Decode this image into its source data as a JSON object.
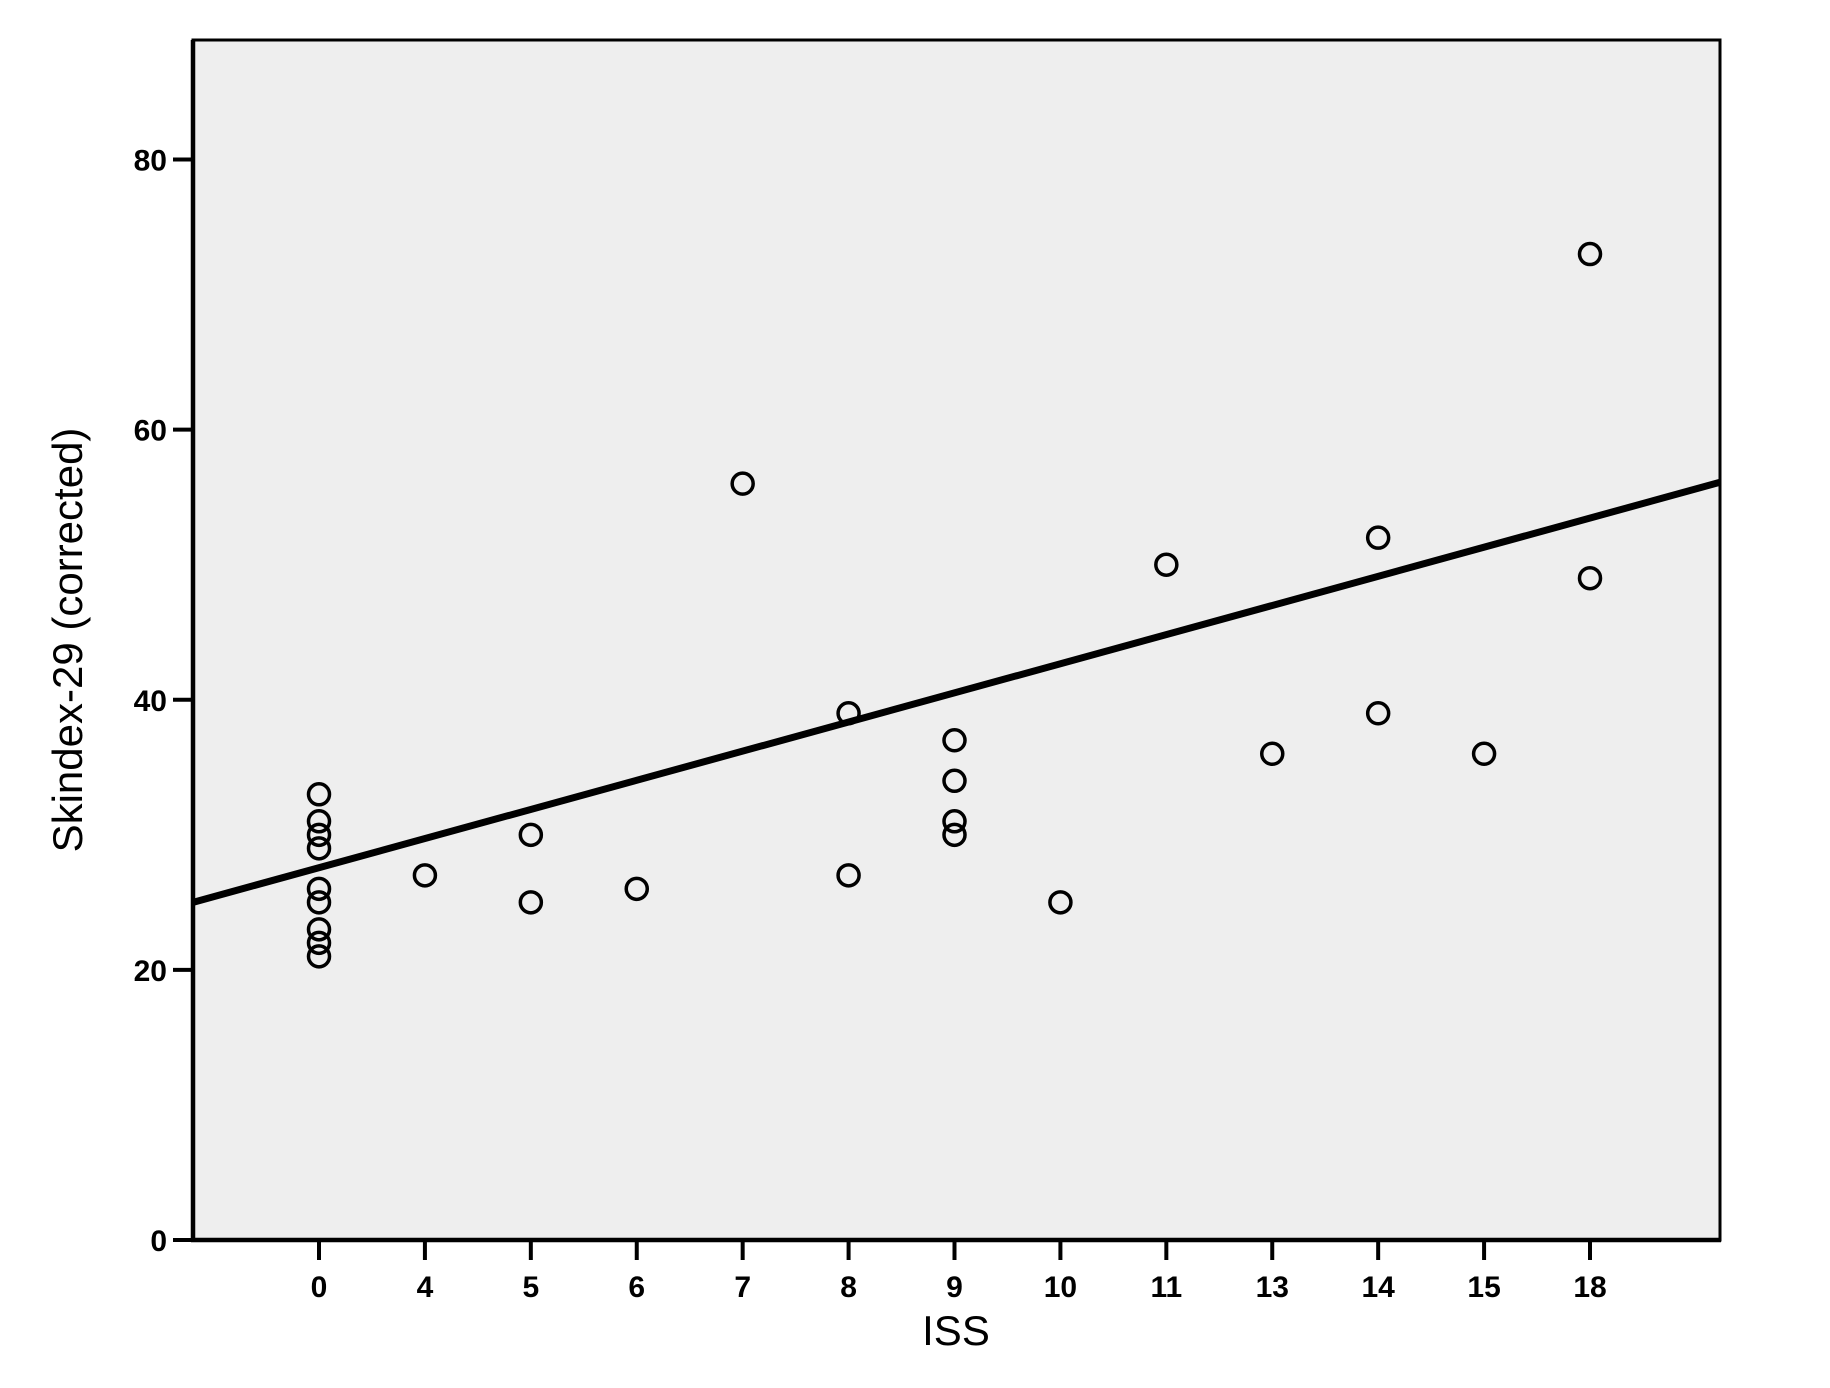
{
  "figure": {
    "page_background": "#ffffff",
    "plot_background": "#eeeeee",
    "foreground": "#000000"
  },
  "chart_data": {
    "type": "scatter",
    "title": "",
    "xlabel": "ISS",
    "ylabel": "Skindex-29 (corrected)",
    "x_tick_labels": [
      "0",
      "4",
      "5",
      "6",
      "7",
      "8",
      "9",
      "10",
      "11",
      "13",
      "14",
      "15",
      "18"
    ],
    "y_ticks": [
      0,
      20,
      40,
      60,
      80
    ],
    "ylim": [
      0,
      89
    ],
    "x_axis_type": "distinct-values-evenly-spaced",
    "grid": false,
    "legend": "none",
    "marker": "open-circle",
    "points": [
      {
        "iss": 0,
        "skindex": 33
      },
      {
        "iss": 0,
        "skindex": 31
      },
      {
        "iss": 0,
        "skindex": 30
      },
      {
        "iss": 0,
        "skindex": 29
      },
      {
        "iss": 0,
        "skindex": 26
      },
      {
        "iss": 0,
        "skindex": 25
      },
      {
        "iss": 0,
        "skindex": 23
      },
      {
        "iss": 0,
        "skindex": 22
      },
      {
        "iss": 0,
        "skindex": 21
      },
      {
        "iss": 4,
        "skindex": 27
      },
      {
        "iss": 5,
        "skindex": 30
      },
      {
        "iss": 5,
        "skindex": 25
      },
      {
        "iss": 6,
        "skindex": 26
      },
      {
        "iss": 7,
        "skindex": 56
      },
      {
        "iss": 8,
        "skindex": 39
      },
      {
        "iss": 8,
        "skindex": 27
      },
      {
        "iss": 9,
        "skindex": 37
      },
      {
        "iss": 9,
        "skindex": 34
      },
      {
        "iss": 9,
        "skindex": 31
      },
      {
        "iss": 9,
        "skindex": 30
      },
      {
        "iss": 10,
        "skindex": 25
      },
      {
        "iss": 11,
        "skindex": 50
      },
      {
        "iss": 13,
        "skindex": 36
      },
      {
        "iss": 14,
        "skindex": 52
      },
      {
        "iss": 14,
        "skindex": 39
      },
      {
        "iss": 15,
        "skindex": 36
      },
      {
        "iss": 18,
        "skindex": 73
      },
      {
        "iss": 18,
        "skindex": 49
      }
    ],
    "trendline": {
      "type": "linear-fit",
      "value_at_left_edge": 25.0,
      "value_at_right_edge": 56.1
    }
  }
}
